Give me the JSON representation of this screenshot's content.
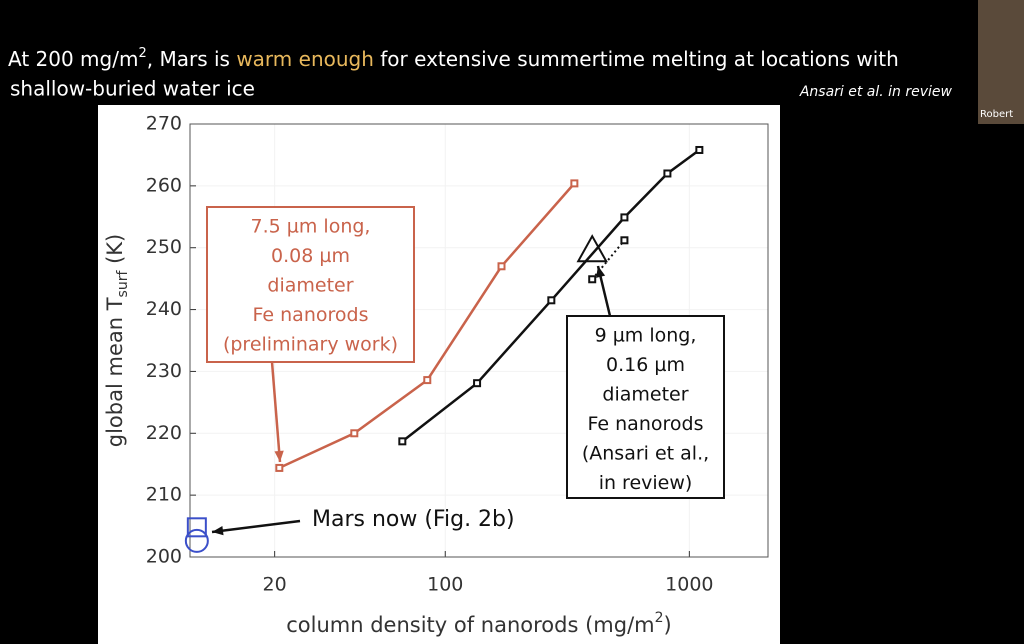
{
  "slide": {
    "title_parts": [
      "At 200 mg/m",
      "2",
      ", Mars is ",
      "warm enough",
      " for extensive summertime melting at locations with"
    ],
    "title_line2": "shallow-buried water ice",
    "citation": "Ansari et al. in review",
    "webcam_name": "Robert"
  },
  "chart_data": {
    "type": "line",
    "xscale": "log",
    "grid": true,
    "xlim": [
      9,
      2100
    ],
    "ylim": [
      200,
      270
    ],
    "xticks": [
      20,
      100,
      1000
    ],
    "yticks": [
      200,
      210,
      220,
      230,
      240,
      250,
      260,
      270
    ],
    "xlabel_parts": [
      "column density of nanorods (mg/m",
      "2",
      ")"
    ],
    "ylabel_parts": [
      "global mean T",
      "surf",
      " (K)"
    ],
    "series": [
      {
        "color": "#c9634b",
        "marker": "square",
        "linestyle": "solid",
        "x": [
          20.9,
          42.4,
          84.4,
          170,
          338
        ],
        "values": [
          214.4,
          220.0,
          228.6,
          247.0,
          260.4
        ]
      },
      {
        "color": "#111111",
        "marker": "square",
        "linestyle": "solid",
        "x": [
          66.7,
          135,
          272,
          542,
          813,
          1099
        ],
        "values": [
          218.7,
          228.1,
          241.5,
          254.9,
          262.0,
          265.8
        ]
      },
      {
        "color": "#111111",
        "marker": "square",
        "linestyle": "dotted",
        "x": [
          400,
          542
        ],
        "values": [
          244.9,
          251.2
        ]
      },
      {
        "color": "#111111",
        "marker": "open-triangle",
        "linestyle": "none",
        "x": [
          400
        ],
        "values": [
          249.6
        ]
      },
      {
        "color": "#3b4fc9",
        "marker": "open-square",
        "linestyle": "none",
        "x": [
          9.6
        ],
        "values": [
          204.8
        ]
      },
      {
        "color": "#3b4fc9",
        "marker": "open-circle",
        "linestyle": "none",
        "x": [
          9.6
        ],
        "values": [
          202.6
        ]
      }
    ],
    "annotations": [
      {
        "color": "#c9634b",
        "lines": [
          "7.5 µm long,",
          "0.08 µm",
          "diameter",
          "Fe nanorods",
          "(preliminary work)"
        ]
      },
      {
        "color": "#111111",
        "lines": [
          "9 µm long,",
          "0.16 µm",
          "diameter",
          "Fe nanorods",
          "(Ansari et al.,",
          "in review)"
        ]
      },
      {
        "color": "#111111",
        "lines": [
          "Mars now (Fig. 2b)"
        ]
      }
    ]
  }
}
